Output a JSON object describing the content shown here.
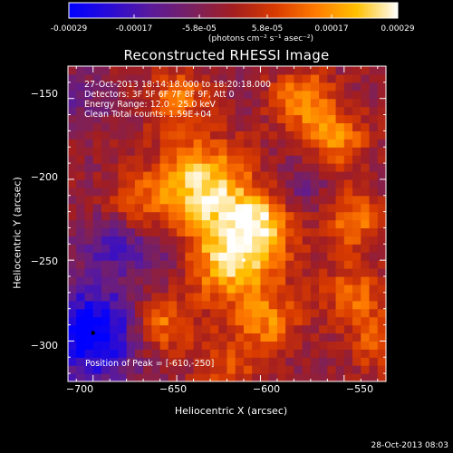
{
  "colorbar": {
    "ticks": [
      "-0.00029",
      "-0.00017",
      "-5.8e-05",
      "5.8e-05",
      "0.00017",
      "0.00029"
    ],
    "units": "(photons cm⁻² s⁻¹ asec⁻²)",
    "colors": [
      "#0000ff",
      "#2a0bd6",
      "#5a1a9a",
      "#7a2060",
      "#a31e20",
      "#d83a00",
      "#ff7a00",
      "#ffc000",
      "#ffffff"
    ]
  },
  "title": "Reconstructed RHESSI Image",
  "info": {
    "time_range": "27-Oct-2013 18:14:18.000 to 18:20:18.000",
    "detectors": "Detectors: 3F 5F 6F 7F 8F 9F, Att 0",
    "energy_range": "Energy Range: 12.0 - 25.0 keV",
    "method": "Clean     Total counts: 1.59E+04"
  },
  "peak_text": "Position of Peak = [-610,-250]",
  "footer": "28-Oct-2013 08:03",
  "chart_data": {
    "type": "heatmap",
    "title": "Reconstructed RHESSI Image",
    "xlabel": "Heliocentric X (arcsec)",
    "ylabel": "Heliocentric Y (arcsec)",
    "xlim": [
      -715,
      -525
    ],
    "ylim": [
      -325,
      -130
    ],
    "xticks": [
      -700,
      -650,
      -600,
      -550
    ],
    "yticks": [
      -300,
      -250,
      -200,
      -150
    ],
    "xtick_labels": [
      "−700",
      "−650",
      "−600",
      "−550"
    ],
    "ytick_labels": [
      "−300",
      "−250",
      "−200",
      "−150"
    ],
    "peak": [
      -610,
      -250
    ],
    "colorbar_range": [
      -0.00029,
      0.00029
    ],
    "sources": [
      {
        "x": -635,
        "y": -205,
        "value": 0.00029
      },
      {
        "x": -615,
        "y": -250,
        "value": 0.00027
      },
      {
        "x": -600,
        "y": -225,
        "value": 0.0002
      },
      {
        "x": -575,
        "y": -150,
        "value": 0.0002
      },
      {
        "x": -555,
        "y": -175,
        "value": 0.00018
      },
      {
        "x": -650,
        "y": -150,
        "value": 0.00016
      },
      {
        "x": -545,
        "y": -225,
        "value": 0.00017
      },
      {
        "x": -660,
        "y": -290,
        "value": 0.00018
      },
      {
        "x": -595,
        "y": -290,
        "value": 0.00016
      },
      {
        "x": -545,
        "y": -270,
        "value": 0.00015
      },
      {
        "x": -675,
        "y": -215,
        "value": 0.0001
      },
      {
        "x": -530,
        "y": -300,
        "value": 0.00014
      },
      {
        "x": -620,
        "y": -315,
        "value": 0.00012
      },
      {
        "x": -700,
        "y": -295,
        "value": -0.00029
      },
      {
        "x": -690,
        "y": -240,
        "value": -0.00012
      },
      {
        "x": -710,
        "y": -150,
        "value": -8e-05
      },
      {
        "x": -660,
        "y": -245,
        "value": -0.0001
      },
      {
        "x": -575,
        "y": -205,
        "value": -8e-05
      }
    ]
  }
}
